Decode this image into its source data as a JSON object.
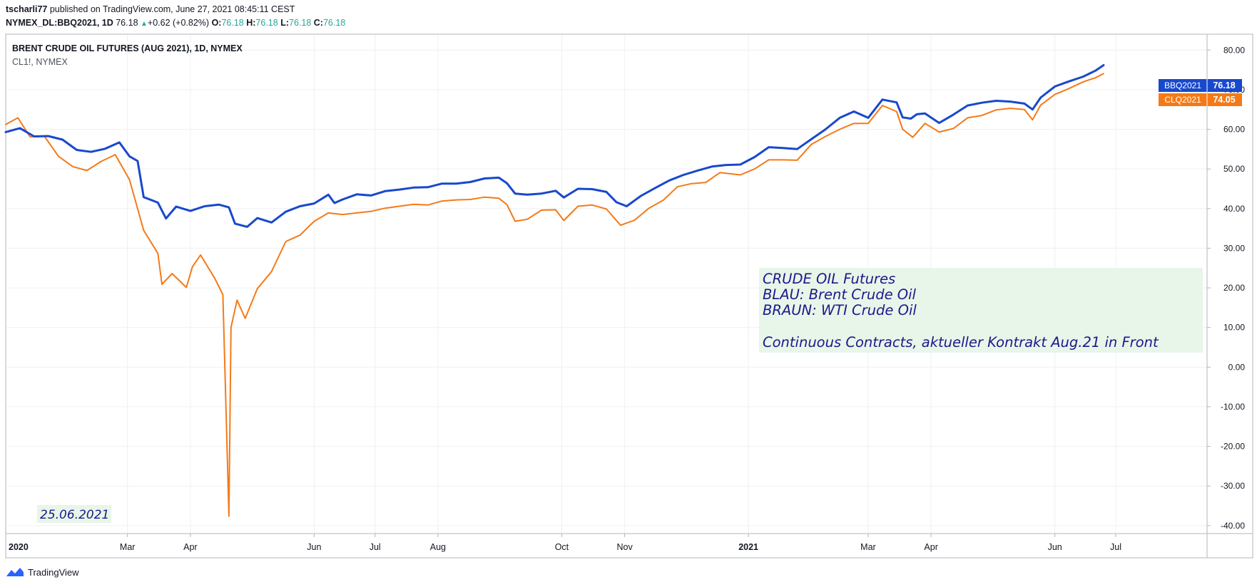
{
  "header": {
    "author": "tscharli77",
    "published": "published on TradingView.com, June 27, 2021 08:45:11 CEST",
    "symbol": "NYMEX_DL:BBQ2021, 1D",
    "last": "76.18",
    "change": "+0.62 (+0.82%)",
    "o_label": "O:",
    "o_value": "76.18",
    "h_label": "H:",
    "h_value": "76.18",
    "l_label": "L:",
    "l_value": "76.18",
    "c_label": "C:",
    "c_value": "76.18"
  },
  "footer": {
    "brand": "TradingView"
  },
  "chart_data": {
    "type": "line",
    "title": "BRENT CRUDE OIL FUTURES (AUG 2021), 1D, NYMEX",
    "subtitle": "CL1!, NYMEX",
    "ylim": [
      -42,
      84
    ],
    "yticks": [
      80,
      70,
      60,
      50,
      40,
      30,
      20,
      10,
      0,
      -10,
      -20,
      -30,
      -40
    ],
    "xlim": [
      "2020-01-01",
      "2021-08-15"
    ],
    "xticks": [
      {
        "date": "2020-01-01",
        "label": "2020",
        "bold": true
      },
      {
        "date": "2020-03-01",
        "label": "Mar"
      },
      {
        "date": "2020-04-01",
        "label": "Apr"
      },
      {
        "date": "2020-06-01",
        "label": "Jun"
      },
      {
        "date": "2020-07-01",
        "label": "Jul"
      },
      {
        "date": "2020-08-01",
        "label": "Aug"
      },
      {
        "date": "2020-10-01",
        "label": "Oct"
      },
      {
        "date": "2020-11-01",
        "label": "Nov"
      },
      {
        "date": "2021-01-01",
        "label": "2021",
        "bold": true
      },
      {
        "date": "2021-03-01",
        "label": "Mar"
      },
      {
        "date": "2021-04-01",
        "label": "Apr"
      },
      {
        "date": "2021-06-01",
        "label": "Jun"
      },
      {
        "date": "2021-07-01",
        "label": "Jul"
      }
    ],
    "grid": true,
    "series": [
      {
        "name": "BBQ2021",
        "color": "#1848cc",
        "last_label": "76.18",
        "points": [
          [
            "2020-01-01",
            59.3
          ],
          [
            "2020-01-08",
            60.3
          ],
          [
            "2020-01-15",
            58.2
          ],
          [
            "2020-01-22",
            58.3
          ],
          [
            "2020-01-29",
            57.4
          ],
          [
            "2020-02-05",
            54.8
          ],
          [
            "2020-02-12",
            54.3
          ],
          [
            "2020-02-19",
            55.1
          ],
          [
            "2020-02-26",
            56.7
          ],
          [
            "2020-03-02",
            53.2
          ],
          [
            "2020-03-06",
            52.0
          ],
          [
            "2020-03-09",
            42.9
          ],
          [
            "2020-03-16",
            41.5
          ],
          [
            "2020-03-20",
            37.5
          ],
          [
            "2020-03-25",
            40.5
          ],
          [
            "2020-04-01",
            39.4
          ],
          [
            "2020-04-08",
            40.6
          ],
          [
            "2020-04-15",
            41.0
          ],
          [
            "2020-04-20",
            40.3
          ],
          [
            "2020-04-23",
            36.2
          ],
          [
            "2020-04-29",
            35.4
          ],
          [
            "2020-05-04",
            37.6
          ],
          [
            "2020-05-11",
            36.5
          ],
          [
            "2020-05-18",
            39.2
          ],
          [
            "2020-05-25",
            40.6
          ],
          [
            "2020-06-01",
            41.3
          ],
          [
            "2020-06-08",
            43.5
          ],
          [
            "2020-06-11",
            41.4
          ],
          [
            "2020-06-15",
            42.3
          ],
          [
            "2020-06-22",
            43.6
          ],
          [
            "2020-06-29",
            43.3
          ],
          [
            "2020-07-06",
            44.4
          ],
          [
            "2020-07-13",
            44.8
          ],
          [
            "2020-07-20",
            45.3
          ],
          [
            "2020-07-27",
            45.4
          ],
          [
            "2020-08-03",
            46.3
          ],
          [
            "2020-08-10",
            46.3
          ],
          [
            "2020-08-17",
            46.7
          ],
          [
            "2020-08-24",
            47.6
          ],
          [
            "2020-08-31",
            47.8
          ],
          [
            "2020-09-04",
            46.4
          ],
          [
            "2020-09-08",
            43.8
          ],
          [
            "2020-09-14",
            43.5
          ],
          [
            "2020-09-21",
            43.8
          ],
          [
            "2020-09-28",
            44.5
          ],
          [
            "2020-10-02",
            42.8
          ],
          [
            "2020-10-09",
            45.0
          ],
          [
            "2020-10-16",
            44.9
          ],
          [
            "2020-10-23",
            44.2
          ],
          [
            "2020-10-28",
            41.6
          ],
          [
            "2020-11-02",
            40.6
          ],
          [
            "2020-11-09",
            43.2
          ],
          [
            "2020-11-16",
            45.2
          ],
          [
            "2020-11-23",
            47.1
          ],
          [
            "2020-11-30",
            48.5
          ],
          [
            "2020-12-07",
            49.6
          ],
          [
            "2020-12-14",
            50.6
          ],
          [
            "2020-12-21",
            51.0
          ],
          [
            "2020-12-28",
            51.1
          ],
          [
            "2021-01-04",
            53.0
          ],
          [
            "2021-01-11",
            55.5
          ],
          [
            "2021-01-18",
            55.3
          ],
          [
            "2021-01-25",
            55.0
          ],
          [
            "2021-02-01",
            57.5
          ],
          [
            "2021-02-08",
            60.0
          ],
          [
            "2021-02-15",
            62.9
          ],
          [
            "2021-02-22",
            64.5
          ],
          [
            "2021-03-01",
            62.9
          ],
          [
            "2021-03-08",
            67.5
          ],
          [
            "2021-03-15",
            66.8
          ],
          [
            "2021-03-18",
            63.0
          ],
          [
            "2021-03-22",
            62.7
          ],
          [
            "2021-03-25",
            63.8
          ],
          [
            "2021-03-29",
            64.0
          ],
          [
            "2021-04-05",
            61.6
          ],
          [
            "2021-04-12",
            63.7
          ],
          [
            "2021-04-19",
            66.0
          ],
          [
            "2021-04-26",
            66.7
          ],
          [
            "2021-05-03",
            67.2
          ],
          [
            "2021-05-10",
            67.0
          ],
          [
            "2021-05-17",
            66.5
          ],
          [
            "2021-05-21",
            65.0
          ],
          [
            "2021-05-25",
            68.0
          ],
          [
            "2021-06-01",
            70.8
          ],
          [
            "2021-06-08",
            72.1
          ],
          [
            "2021-06-15",
            73.3
          ],
          [
            "2021-06-21",
            74.8
          ],
          [
            "2021-06-25",
            76.18
          ]
        ]
      },
      {
        "name": "CLQ2021",
        "color": "#f57a17",
        "last_label": "74.05",
        "points": [
          [
            "2020-01-01",
            61.2
          ],
          [
            "2020-01-07",
            62.9
          ],
          [
            "2020-01-13",
            58.1
          ],
          [
            "2020-01-20",
            58.3
          ],
          [
            "2020-01-27",
            53.2
          ],
          [
            "2020-02-03",
            50.6
          ],
          [
            "2020-02-10",
            49.6
          ],
          [
            "2020-02-17",
            51.9
          ],
          [
            "2020-02-24",
            53.6
          ],
          [
            "2020-03-02",
            47.3
          ],
          [
            "2020-03-09",
            34.5
          ],
          [
            "2020-03-16",
            28.7
          ],
          [
            "2020-03-18",
            20.9
          ],
          [
            "2020-03-23",
            23.6
          ],
          [
            "2020-03-30",
            20.1
          ],
          [
            "2020-04-02",
            25.3
          ],
          [
            "2020-04-06",
            28.3
          ],
          [
            "2020-04-13",
            22.4
          ],
          [
            "2020-04-17",
            18.3
          ],
          [
            "2020-04-20",
            -37.6
          ],
          [
            "2020-04-21",
            10.0
          ],
          [
            "2020-04-24",
            16.9
          ],
          [
            "2020-04-28",
            12.3
          ],
          [
            "2020-05-04",
            19.8
          ],
          [
            "2020-05-11",
            24.1
          ],
          [
            "2020-05-18",
            31.7
          ],
          [
            "2020-05-25",
            33.3
          ],
          [
            "2020-06-01",
            36.8
          ],
          [
            "2020-06-08",
            38.9
          ],
          [
            "2020-06-15",
            38.5
          ],
          [
            "2020-06-22",
            38.9
          ],
          [
            "2020-06-29",
            39.3
          ],
          [
            "2020-07-06",
            40.1
          ],
          [
            "2020-07-13",
            40.6
          ],
          [
            "2020-07-20",
            41.1
          ],
          [
            "2020-07-27",
            40.9
          ],
          [
            "2020-08-03",
            41.9
          ],
          [
            "2020-08-10",
            42.2
          ],
          [
            "2020-08-17",
            42.3
          ],
          [
            "2020-08-24",
            42.9
          ],
          [
            "2020-08-31",
            42.6
          ],
          [
            "2020-09-04",
            41.0
          ],
          [
            "2020-09-08",
            36.8
          ],
          [
            "2020-09-14",
            37.3
          ],
          [
            "2020-09-21",
            39.6
          ],
          [
            "2020-09-28",
            39.7
          ],
          [
            "2020-10-02",
            37.0
          ],
          [
            "2020-10-09",
            40.6
          ],
          [
            "2020-10-16",
            40.9
          ],
          [
            "2020-10-23",
            39.9
          ],
          [
            "2020-10-30",
            35.8
          ],
          [
            "2020-11-06",
            37.1
          ],
          [
            "2020-11-13",
            40.1
          ],
          [
            "2020-11-20",
            42.1
          ],
          [
            "2020-11-27",
            45.5
          ],
          [
            "2020-12-04",
            46.3
          ],
          [
            "2020-12-11",
            46.6
          ],
          [
            "2020-12-18",
            49.1
          ],
          [
            "2020-12-28",
            48.5
          ],
          [
            "2021-01-04",
            50.0
          ],
          [
            "2021-01-11",
            52.3
          ],
          [
            "2021-01-18",
            52.3
          ],
          [
            "2021-01-25",
            52.2
          ],
          [
            "2021-02-01",
            56.2
          ],
          [
            "2021-02-08",
            58.2
          ],
          [
            "2021-02-15",
            60.0
          ],
          [
            "2021-02-22",
            61.5
          ],
          [
            "2021-03-01",
            61.5
          ],
          [
            "2021-03-08",
            66.0
          ],
          [
            "2021-03-15",
            64.5
          ],
          [
            "2021-03-18",
            60.0
          ],
          [
            "2021-03-23",
            58.0
          ],
          [
            "2021-03-29",
            61.5
          ],
          [
            "2021-04-05",
            59.3
          ],
          [
            "2021-04-12",
            60.2
          ],
          [
            "2021-04-19",
            62.9
          ],
          [
            "2021-04-26",
            63.5
          ],
          [
            "2021-05-03",
            64.9
          ],
          [
            "2021-05-10",
            65.3
          ],
          [
            "2021-05-17",
            65.0
          ],
          [
            "2021-05-21",
            62.4
          ],
          [
            "2021-05-25",
            66.1
          ],
          [
            "2021-06-01",
            68.8
          ],
          [
            "2021-06-08",
            70.3
          ],
          [
            "2021-06-15",
            72.0
          ],
          [
            "2021-06-21",
            73.0
          ],
          [
            "2021-06-25",
            74.05
          ]
        ]
      }
    ],
    "annotations": [
      {
        "lines": [
          "CRUDE OIL Futures",
          "BLAU: Brent Crude Oil",
          "BRAUN: WTI Crude Oil",
          "",
          "Continuous Contracts, aktueller Kontrakt Aug.21 in Front"
        ],
        "color": "#1a1a8c",
        "background": "#e8f5e9"
      },
      {
        "lines": [
          "25.06.2021"
        ],
        "color": "#1a1a8c",
        "background": "#e8f5e9"
      }
    ]
  }
}
